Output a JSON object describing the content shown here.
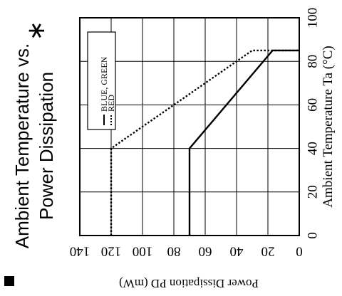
{
  "title_line1": "Ambient Temperature vs.",
  "title_line2": "Power Dissipation",
  "asterisk": "∗",
  "chart_data": {
    "type": "line",
    "orientation": "rotated 90° counter-clockwise",
    "xlabel": "Ambient Temperature Ta (°C)",
    "ylabel": "Power Dissipation PD (mW)",
    "xlim": [
      0,
      100
    ],
    "ylim": [
      0,
      140
    ],
    "x_ticks": [
      "0",
      "20",
      "40",
      "60",
      "80",
      "100"
    ],
    "y_ticks": [
      "0",
      "20",
      "40",
      "60",
      "80",
      "100",
      "120",
      "140"
    ],
    "grid": true,
    "legend_placement": "upper-left of plot (as drawn)",
    "series": [
      {
        "name": "BLUE, GREEN",
        "style": "solid",
        "points": [
          [
            0,
            70
          ],
          [
            40,
            70
          ],
          [
            85,
            17
          ],
          [
            85,
            0
          ]
        ]
      },
      {
        "name": "RED",
        "style": "dotted",
        "points": [
          [
            0,
            120
          ],
          [
            40,
            120
          ],
          [
            85,
            30
          ],
          [
            85,
            0
          ]
        ]
      }
    ]
  },
  "colors": {
    "line": "#000000",
    "background": "#ffffff"
  }
}
